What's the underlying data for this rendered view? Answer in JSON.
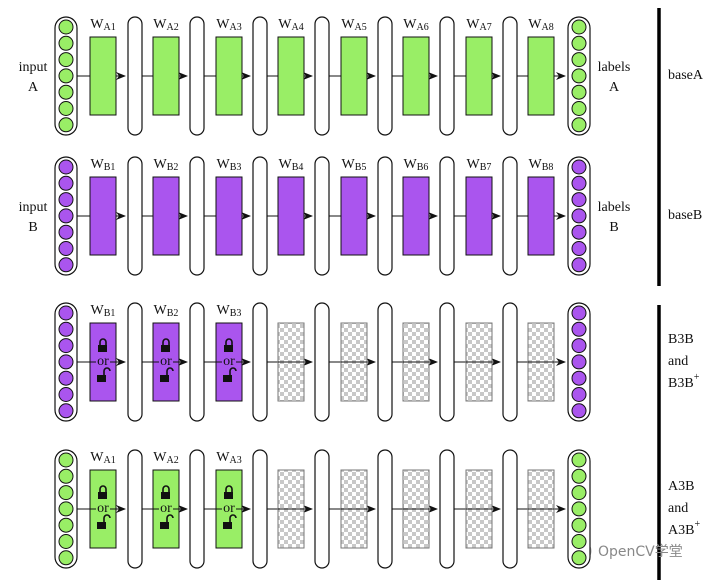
{
  "rows": [
    {
      "color": "#99ee66",
      "input_lines": [
        "input",
        "A"
      ],
      "output_lines": [
        "labels",
        "A"
      ],
      "weights": [
        {
          "base": "W",
          "sub": "A1"
        },
        {
          "base": "W",
          "sub": "A2"
        },
        {
          "base": "W",
          "sub": "A3"
        },
        {
          "base": "W",
          "sub": "A4"
        },
        {
          "base": "W",
          "sub": "A5"
        },
        {
          "base": "W",
          "sub": "A6"
        },
        {
          "base": "W",
          "sub": "A7"
        },
        {
          "base": "W",
          "sub": "A8"
        }
      ],
      "side_lines": [
        "baseA"
      ]
    },
    {
      "color": "#aa55ee",
      "input_lines": [
        "input",
        "B"
      ],
      "output_lines": [
        "labels",
        "B"
      ],
      "weights": [
        {
          "base": "W",
          "sub": "B1"
        },
        {
          "base": "W",
          "sub": "B2"
        },
        {
          "base": "W",
          "sub": "B3"
        },
        {
          "base": "W",
          "sub": "B4"
        },
        {
          "base": "W",
          "sub": "B5"
        },
        {
          "base": "W",
          "sub": "B6"
        },
        {
          "base": "W",
          "sub": "B7"
        },
        {
          "base": "W",
          "sub": "B8"
        }
      ],
      "side_lines": [
        "baseB"
      ]
    },
    {
      "color": "#aa55ee",
      "weights": [
        {
          "base": "W",
          "sub": "B1",
          "lock": "or"
        },
        {
          "base": "W",
          "sub": "B2",
          "lock": "or"
        },
        {
          "base": "W",
          "sub": "B3",
          "lock": "or"
        }
      ],
      "side_lines": [
        "B3B",
        "and",
        "B3B"
      ],
      "side_sup": "+"
    },
    {
      "color": "#99ee66",
      "weights": [
        {
          "base": "W",
          "sub": "A1",
          "lock": "or"
        },
        {
          "base": "W",
          "sub": "A2",
          "lock": "or"
        },
        {
          "base": "W",
          "sub": "A3",
          "lock": "or"
        }
      ],
      "side_lines": [
        "A3B",
        "and",
        "A3B"
      ],
      "side_sup": "+"
    }
  ],
  "watermark": "OpenCV学堂"
}
